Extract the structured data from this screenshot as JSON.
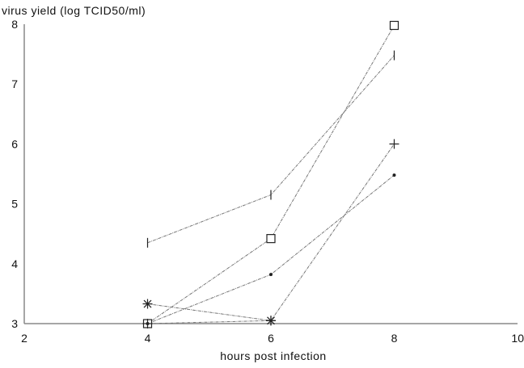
{
  "chart_data": {
    "type": "line",
    "ylabel": "virus yield (log TCID50/ml)",
    "xlabel": "hours post infection",
    "xlim": [
      2,
      10
    ],
    "ylim": [
      3,
      8
    ],
    "x_ticks": [
      2,
      4,
      6,
      8,
      10
    ],
    "y_ticks": [
      3,
      4,
      5,
      6,
      7,
      8
    ],
    "x_tick_labels": [
      "2",
      "4",
      "6",
      "8",
      "10"
    ],
    "y_tick_labels": [
      "3",
      "4",
      "5",
      "6",
      "7",
      "8"
    ],
    "grid": false,
    "series": [
      {
        "marker": "vertical-bar",
        "points": [
          [
            4,
            4.35
          ],
          [
            6,
            5.15
          ],
          [
            8,
            7.48
          ]
        ]
      },
      {
        "marker": "square",
        "points": [
          [
            4,
            3.0
          ],
          [
            6,
            4.42
          ],
          [
            8,
            7.98
          ]
        ]
      },
      {
        "marker": "plus",
        "points": [
          [
            4,
            3.0
          ],
          [
            6,
            3.05
          ],
          [
            8,
            6.0
          ]
        ]
      },
      {
        "marker": "dot",
        "points": [
          [
            4,
            3.0
          ],
          [
            6,
            3.82
          ],
          [
            8,
            5.48
          ]
        ]
      },
      {
        "marker": "asterisk",
        "points": [
          [
            4,
            3.33
          ],
          [
            6,
            3.05
          ]
        ]
      }
    ],
    "colors": {
      "line": "#777777",
      "marker": "#222222",
      "axis": "#888888"
    }
  }
}
